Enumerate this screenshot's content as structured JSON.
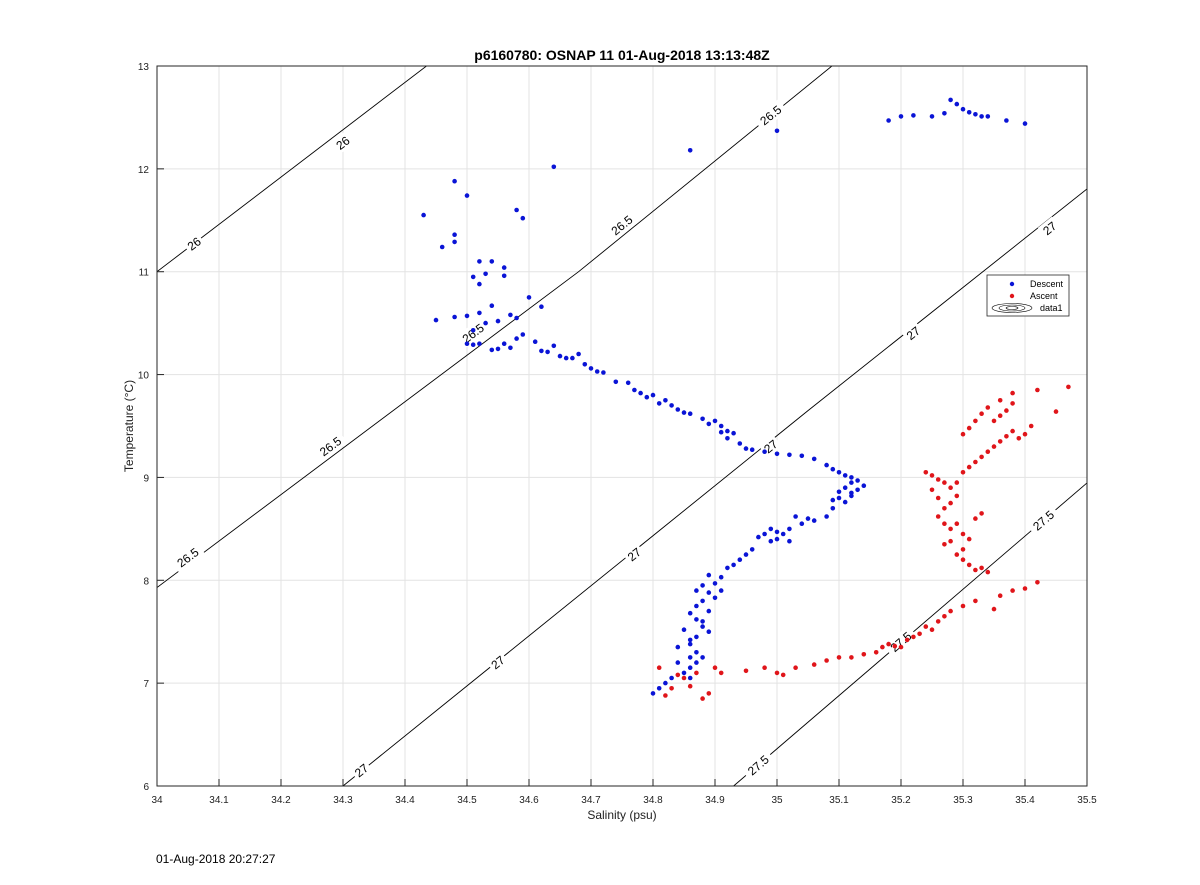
{
  "timestamp": "01-Aug-2018 20:27:27",
  "chart_data": {
    "type": "scatter",
    "title": "p6160780: OSNAP 11 01-Aug-2018 13:13:48Z",
    "xlabel": "Salinity (psu)",
    "ylabel": "Temperature (°C)",
    "xlim": [
      34,
      35.5
    ],
    "ylim": [
      6,
      13
    ],
    "x_ticks": [
      "34",
      "34.1",
      "34.2",
      "34.3",
      "34.4",
      "34.5",
      "34.6",
      "34.7",
      "34.8",
      "34.9",
      "35",
      "35.1",
      "35.2",
      "35.3",
      "35.4",
      "35.5"
    ],
    "y_ticks": [
      "6",
      "7",
      "8",
      "9",
      "10",
      "11",
      "12",
      "13"
    ],
    "grid": true,
    "legend_position": "right",
    "legend": [
      "Descent",
      "Ascent",
      "data1"
    ],
    "colors": {
      "descent": "#0a14d6",
      "ascent": "#e0151a",
      "contour": "#000000",
      "grid": "#e3e3e3"
    },
    "contours": [
      {
        "level": "26",
        "points": [
          [
            34.0,
            11.0
          ],
          [
            34.5,
            13.3
          ]
        ],
        "labels": [
          [
            34.06,
            11.27
          ],
          [
            34.3,
            12.25
          ]
        ]
      },
      {
        "level": "26.5",
        "points": [
          [
            34.0,
            7.93
          ],
          [
            34.68,
            11.0
          ],
          [
            35.15,
            13.3
          ]
        ],
        "labels": [
          [
            34.05,
            8.22
          ],
          [
            34.28,
            9.3
          ],
          [
            34.51,
            10.4
          ],
          [
            34.75,
            11.45
          ],
          [
            34.99,
            12.52
          ]
        ]
      },
      {
        "level": "27",
        "points": [
          [
            34.3,
            6.0
          ],
          [
            35.05,
            9.65
          ],
          [
            35.52,
            11.9
          ]
        ],
        "labels": [
          [
            34.33,
            6.15
          ],
          [
            34.55,
            7.2
          ],
          [
            34.77,
            8.25
          ],
          [
            34.99,
            9.3
          ],
          [
            35.22,
            10.4
          ],
          [
            35.44,
            11.42
          ]
        ]
      },
      {
        "level": "27.5",
        "points": [
          [
            34.93,
            6.0
          ],
          [
            35.52,
            9.05
          ]
        ],
        "labels": [
          [
            34.97,
            6.2
          ],
          [
            35.2,
            7.4
          ],
          [
            35.43,
            8.58
          ]
        ]
      }
    ],
    "series": [
      {
        "name": "Descent",
        "points": [
          [
            34.43,
            11.55
          ],
          [
            34.48,
            11.88
          ],
          [
            34.5,
            11.74
          ],
          [
            34.46,
            11.24
          ],
          [
            34.48,
            11.36
          ],
          [
            34.48,
            11.29
          ],
          [
            34.58,
            11.6
          ],
          [
            34.59,
            11.52
          ],
          [
            34.64,
            12.02
          ],
          [
            34.86,
            12.18
          ],
          [
            35.0,
            12.37
          ],
          [
            35.18,
            12.47
          ],
          [
            35.2,
            12.51
          ],
          [
            35.22,
            12.52
          ],
          [
            35.25,
            12.51
          ],
          [
            35.27,
            12.54
          ],
          [
            35.28,
            12.67
          ],
          [
            35.29,
            12.63
          ],
          [
            35.3,
            12.58
          ],
          [
            35.31,
            12.55
          ],
          [
            35.32,
            12.53
          ],
          [
            35.33,
            12.51
          ],
          [
            35.34,
            12.51
          ],
          [
            35.37,
            12.47
          ],
          [
            35.4,
            12.44
          ],
          [
            34.45,
            10.53
          ],
          [
            34.48,
            10.56
          ],
          [
            34.5,
            10.57
          ],
          [
            34.52,
            11.1
          ],
          [
            34.54,
            11.1
          ],
          [
            34.53,
            10.98
          ],
          [
            34.51,
            10.95
          ],
          [
            34.52,
            10.88
          ],
          [
            34.56,
            11.04
          ],
          [
            34.56,
            10.96
          ],
          [
            34.52,
            10.6
          ],
          [
            34.54,
            10.67
          ],
          [
            34.51,
            10.43
          ],
          [
            34.53,
            10.5
          ],
          [
            34.55,
            10.52
          ],
          [
            34.57,
            10.58
          ],
          [
            34.58,
            10.55
          ],
          [
            34.6,
            10.75
          ],
          [
            34.62,
            10.66
          ],
          [
            34.5,
            10.3
          ],
          [
            34.51,
            10.29
          ],
          [
            34.52,
            10.3
          ],
          [
            34.54,
            10.24
          ],
          [
            34.55,
            10.25
          ],
          [
            34.56,
            10.3
          ],
          [
            34.57,
            10.26
          ],
          [
            34.58,
            10.35
          ],
          [
            34.59,
            10.39
          ],
          [
            34.61,
            10.32
          ],
          [
            34.62,
            10.23
          ],
          [
            34.63,
            10.22
          ],
          [
            34.64,
            10.28
          ],
          [
            34.65,
            10.18
          ],
          [
            34.66,
            10.16
          ],
          [
            34.67,
            10.16
          ],
          [
            34.68,
            10.2
          ],
          [
            34.69,
            10.1
          ],
          [
            34.7,
            10.06
          ],
          [
            34.71,
            10.03
          ],
          [
            34.72,
            10.02
          ],
          [
            34.74,
            9.93
          ],
          [
            34.76,
            9.92
          ],
          [
            34.77,
            9.85
          ],
          [
            34.78,
            9.82
          ],
          [
            34.79,
            9.78
          ],
          [
            34.8,
            9.8
          ],
          [
            34.81,
            9.72
          ],
          [
            34.82,
            9.75
          ],
          [
            34.83,
            9.7
          ],
          [
            34.84,
            9.66
          ],
          [
            34.85,
            9.63
          ],
          [
            34.86,
            9.62
          ],
          [
            34.88,
            9.57
          ],
          [
            34.89,
            9.52
          ],
          [
            34.9,
            9.55
          ],
          [
            34.91,
            9.5
          ],
          [
            34.91,
            9.44
          ],
          [
            34.92,
            9.45
          ],
          [
            34.92,
            9.38
          ],
          [
            34.93,
            9.43
          ],
          [
            34.94,
            9.33
          ],
          [
            34.95,
            9.28
          ],
          [
            34.96,
            9.27
          ],
          [
            34.98,
            9.25
          ],
          [
            35.0,
            9.23
          ],
          [
            35.02,
            9.22
          ],
          [
            35.04,
            9.21
          ],
          [
            35.06,
            9.18
          ],
          [
            35.08,
            9.12
          ],
          [
            35.09,
            9.08
          ],
          [
            35.1,
            9.05
          ],
          [
            35.11,
            9.02
          ],
          [
            35.12,
            9.0
          ],
          [
            35.13,
            8.97
          ],
          [
            35.14,
            8.92
          ],
          [
            35.13,
            8.88
          ],
          [
            35.12,
            8.85
          ],
          [
            35.11,
            8.9
          ],
          [
            35.1,
            8.8
          ],
          [
            35.09,
            8.78
          ],
          [
            35.11,
            8.76
          ],
          [
            35.12,
            8.82
          ],
          [
            35.1,
            8.86
          ],
          [
            35.12,
            8.95
          ],
          [
            35.09,
            8.7
          ],
          [
            35.08,
            8.62
          ],
          [
            35.06,
            8.58
          ],
          [
            35.05,
            8.6
          ],
          [
            35.03,
            8.62
          ],
          [
            35.04,
            8.55
          ],
          [
            35.02,
            8.5
          ],
          [
            35.0,
            8.47
          ],
          [
            34.99,
            8.5
          ],
          [
            35.01,
            8.45
          ],
          [
            35.0,
            8.4
          ],
          [
            35.02,
            8.38
          ],
          [
            34.99,
            8.38
          ],
          [
            34.98,
            8.45
          ],
          [
            34.97,
            8.42
          ],
          [
            34.96,
            8.3
          ],
          [
            34.95,
            8.25
          ],
          [
            34.94,
            8.2
          ],
          [
            34.93,
            8.15
          ],
          [
            34.92,
            8.12
          ],
          [
            34.91,
            8.03
          ],
          [
            34.9,
            7.97
          ],
          [
            34.89,
            7.88
          ],
          [
            34.88,
            7.8
          ],
          [
            34.87,
            7.75
          ],
          [
            34.86,
            7.68
          ],
          [
            34.87,
            7.62
          ],
          [
            34.88,
            7.55
          ],
          [
            34.89,
            7.5
          ],
          [
            34.87,
            7.45
          ],
          [
            34.86,
            7.38
          ],
          [
            34.87,
            7.3
          ],
          [
            34.88,
            7.25
          ],
          [
            34.87,
            7.2
          ],
          [
            34.86,
            7.15
          ],
          [
            34.85,
            7.1
          ],
          [
            34.86,
            7.05
          ],
          [
            34.88,
            7.6
          ],
          [
            34.89,
            7.7
          ],
          [
            34.9,
            7.83
          ],
          [
            34.91,
            7.9
          ],
          [
            34.89,
            8.05
          ],
          [
            34.88,
            7.95
          ],
          [
            34.87,
            7.9
          ],
          [
            34.86,
            7.42
          ],
          [
            34.85,
            7.52
          ],
          [
            34.84,
            7.35
          ],
          [
            34.83,
            7.05
          ],
          [
            34.82,
            7.0
          ],
          [
            34.81,
            6.95
          ],
          [
            34.8,
            6.9
          ],
          [
            34.84,
            7.2
          ],
          [
            34.86,
            7.25
          ]
        ]
      },
      {
        "name": "Ascent",
        "points": [
          [
            34.81,
            7.15
          ],
          [
            34.82,
            6.88
          ],
          [
            34.83,
            6.95
          ],
          [
            34.84,
            7.08
          ],
          [
            34.85,
            7.05
          ],
          [
            34.86,
            6.97
          ],
          [
            34.87,
            7.1
          ],
          [
            34.88,
            6.85
          ],
          [
            34.89,
            6.9
          ],
          [
            34.9,
            7.15
          ],
          [
            34.91,
            7.1
          ],
          [
            34.95,
            7.12
          ],
          [
            34.98,
            7.15
          ],
          [
            35.0,
            7.1
          ],
          [
            35.01,
            7.08
          ],
          [
            35.03,
            7.15
          ],
          [
            35.06,
            7.18
          ],
          [
            35.08,
            7.22
          ],
          [
            35.1,
            7.25
          ],
          [
            35.12,
            7.25
          ],
          [
            35.14,
            7.28
          ],
          [
            35.16,
            7.3
          ],
          [
            35.17,
            7.35
          ],
          [
            35.18,
            7.38
          ],
          [
            35.19,
            7.36
          ],
          [
            35.2,
            7.35
          ],
          [
            35.21,
            7.42
          ],
          [
            35.22,
            7.45
          ],
          [
            35.23,
            7.48
          ],
          [
            35.24,
            7.55
          ],
          [
            35.25,
            7.52
          ],
          [
            35.26,
            7.6
          ],
          [
            35.27,
            7.65
          ],
          [
            35.28,
            7.7
          ],
          [
            35.3,
            7.75
          ],
          [
            35.32,
            7.8
          ],
          [
            35.35,
            7.72
          ],
          [
            35.36,
            7.85
          ],
          [
            35.38,
            7.9
          ],
          [
            35.4,
            7.92
          ],
          [
            35.42,
            7.98
          ],
          [
            35.24,
            9.05
          ],
          [
            35.25,
            9.02
          ],
          [
            35.26,
            8.98
          ],
          [
            35.27,
            8.95
          ],
          [
            35.28,
            8.9
          ],
          [
            35.29,
            8.82
          ],
          [
            35.28,
            8.75
          ],
          [
            35.27,
            8.7
          ],
          [
            35.26,
            8.62
          ],
          [
            35.27,
            8.55
          ],
          [
            35.28,
            8.5
          ],
          [
            35.29,
            8.55
          ],
          [
            35.3,
            8.45
          ],
          [
            35.31,
            8.4
          ],
          [
            35.3,
            8.3
          ],
          [
            35.29,
            8.25
          ],
          [
            35.3,
            8.2
          ],
          [
            35.31,
            8.15
          ],
          [
            35.32,
            8.1
          ],
          [
            35.33,
            8.12
          ],
          [
            35.34,
            8.08
          ],
          [
            35.27,
            8.35
          ],
          [
            35.28,
            8.38
          ],
          [
            35.32,
            8.6
          ],
          [
            35.33,
            8.65
          ],
          [
            35.26,
            8.8
          ],
          [
            35.25,
            8.88
          ],
          [
            35.29,
            8.95
          ],
          [
            35.3,
            9.05
          ],
          [
            35.31,
            9.1
          ],
          [
            35.32,
            9.15
          ],
          [
            35.33,
            9.2
          ],
          [
            35.34,
            9.25
          ],
          [
            35.35,
            9.3
          ],
          [
            35.36,
            9.35
          ],
          [
            35.37,
            9.4
          ],
          [
            35.38,
            9.45
          ],
          [
            35.39,
            9.38
          ],
          [
            35.4,
            9.42
          ],
          [
            35.41,
            9.5
          ],
          [
            35.35,
            9.55
          ],
          [
            35.36,
            9.6
          ],
          [
            35.37,
            9.65
          ],
          [
            35.38,
            9.72
          ],
          [
            35.36,
            9.75
          ],
          [
            35.34,
            9.68
          ],
          [
            35.33,
            9.62
          ],
          [
            35.32,
            9.55
          ],
          [
            35.31,
            9.48
          ],
          [
            35.3,
            9.42
          ],
          [
            35.38,
            9.82
          ],
          [
            35.42,
            9.85
          ],
          [
            35.45,
            9.64
          ],
          [
            35.47,
            9.88
          ]
        ]
      }
    ]
  }
}
